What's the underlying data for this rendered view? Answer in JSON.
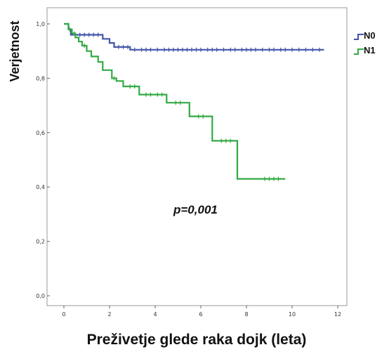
{
  "chart_data": {
    "type": "line",
    "title": "",
    "xlabel": "Preživetje glede raka dojk (leta)",
    "ylabel": "Verjetnost",
    "xlim": [
      0,
      12
    ],
    "ylim": [
      0,
      1
    ],
    "x_ticks": [
      "0",
      "2",
      "4",
      "6",
      "8",
      "10",
      "12"
    ],
    "y_ticks": [
      "0,0",
      "0,2",
      "0,4",
      "0,6",
      "0,8",
      "1,0"
    ],
    "grid": false,
    "legend_position": "right-top",
    "annotation": "p=0,001",
    "series": [
      {
        "name": "N0",
        "color": "#4455aa",
        "steps": [
          [
            0,
            1.0
          ],
          [
            0.2,
            0.98
          ],
          [
            0.3,
            0.96
          ],
          [
            1.7,
            0.945
          ],
          [
            2.0,
            0.93
          ],
          [
            2.2,
            0.915
          ],
          [
            2.9,
            0.905
          ],
          [
            11.4,
            0.905
          ]
        ],
        "censored": [
          0.5,
          0.7,
          0.9,
          1.1,
          1.3,
          1.5,
          2.4,
          2.6,
          2.8,
          3.1,
          3.4,
          3.6,
          3.8,
          4.1,
          4.4,
          4.6,
          4.8,
          5.0,
          5.2,
          5.4,
          5.6,
          5.8,
          6.0,
          6.3,
          6.5,
          6.7,
          7.0,
          7.3,
          7.5,
          7.8,
          8.0,
          8.2,
          8.4,
          8.7,
          9.0,
          9.2,
          9.5,
          9.7,
          10.0,
          10.3,
          10.6,
          10.9,
          11.2
        ]
      },
      {
        "name": "N1",
        "color": "#33aa44",
        "steps": [
          [
            0,
            1.0
          ],
          [
            0.2,
            0.98
          ],
          [
            0.35,
            0.965
          ],
          [
            0.5,
            0.95
          ],
          [
            0.65,
            0.935
          ],
          [
            0.8,
            0.92
          ],
          [
            1.0,
            0.9
          ],
          [
            1.2,
            0.88
          ],
          [
            1.5,
            0.86
          ],
          [
            1.7,
            0.83
          ],
          [
            2.1,
            0.8
          ],
          [
            2.3,
            0.79
          ],
          [
            2.6,
            0.77
          ],
          [
            3.3,
            0.74
          ],
          [
            4.5,
            0.71
          ],
          [
            5.5,
            0.66
          ],
          [
            6.5,
            0.57
          ],
          [
            7.6,
            0.43
          ],
          [
            9.7,
            0.43
          ]
        ],
        "censored": [
          0.25,
          0.45,
          0.9,
          2.2,
          2.9,
          3.1,
          3.6,
          3.8,
          4.1,
          4.3,
          4.9,
          5.1,
          5.9,
          6.1,
          6.9,
          7.1,
          7.3,
          8.8,
          9.0,
          9.2,
          9.4
        ]
      }
    ]
  }
}
